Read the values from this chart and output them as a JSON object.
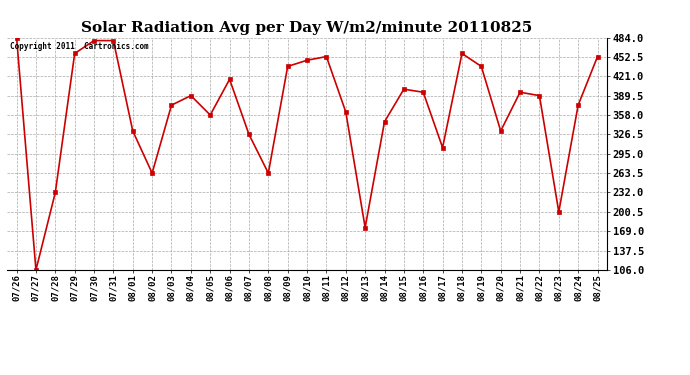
{
  "title": "Solar Radiation Avg per Day W/m2/minute 20110825",
  "copyright_text": "Copyright 2011  Cartronics.com",
  "x_labels": [
    "07/26",
    "07/27",
    "07/28",
    "07/29",
    "07/30",
    "07/31",
    "08/01",
    "08/02",
    "08/03",
    "08/04",
    "08/05",
    "08/06",
    "08/07",
    "08/08",
    "08/09",
    "08/10",
    "08/11",
    "08/12",
    "08/13",
    "08/14",
    "08/15",
    "08/16",
    "08/17",
    "08/18",
    "08/19",
    "08/20",
    "08/21",
    "08/22",
    "08/23",
    "08/24",
    "08/25"
  ],
  "values": [
    484.0,
    106.0,
    232.0,
    458.0,
    479.0,
    479.0,
    332.0,
    263.5,
    374.0,
    389.5,
    358.0,
    416.0,
    326.5,
    263.5,
    437.0,
    447.0,
    453.0,
    363.0,
    175.0,
    347.0,
    400.0,
    395.0,
    305.0,
    458.0,
    437.0,
    332.0,
    395.0,
    389.5,
    200.5,
    374.0,
    453.0
  ],
  "ylim_min": 106.0,
  "ylim_max": 484.0,
  "yticks": [
    106.0,
    137.5,
    169.0,
    200.5,
    232.0,
    263.5,
    295.0,
    326.5,
    358.0,
    389.5,
    421.0,
    452.5,
    484.0
  ],
  "line_color": "#cc0000",
  "marker_color": "#cc0000",
  "bg_color": "#ffffff",
  "grid_color": "#aaaaaa",
  "title_fontsize": 11,
  "label_fontsize": 6.5,
  "ylabel_fontsize": 7.5
}
